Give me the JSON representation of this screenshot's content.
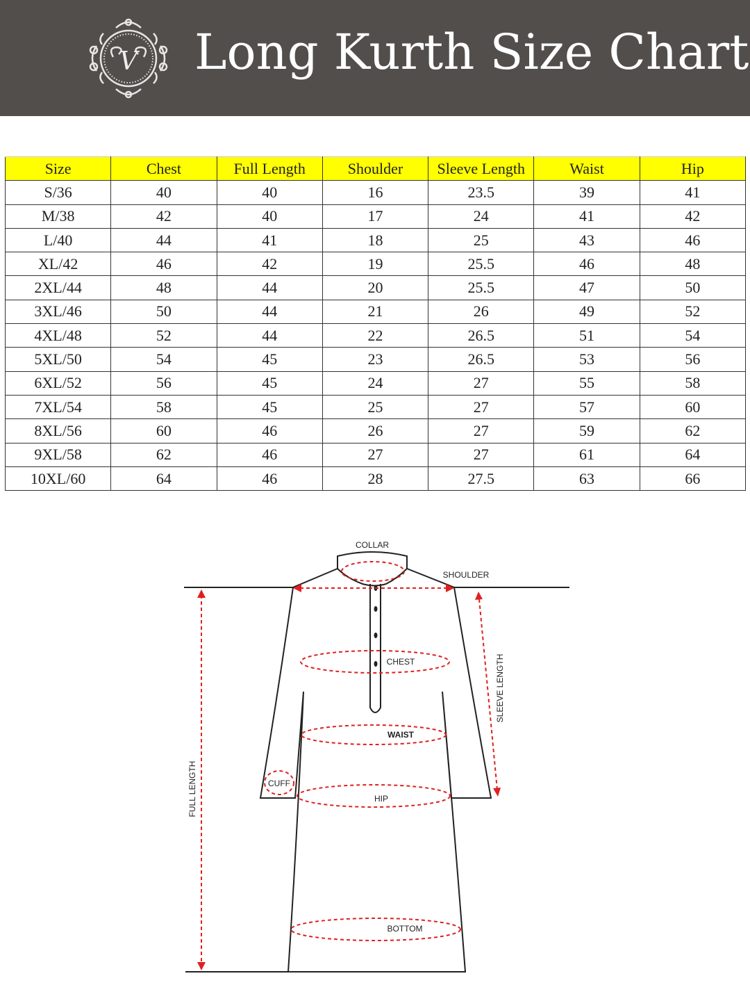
{
  "header": {
    "title": "Long Kurth Size Chart",
    "logo_letter": "V",
    "background_color": "#524e4b"
  },
  "table": {
    "header_color": "#ffff00",
    "columns": [
      "Size",
      "Chest",
      "Full  Length",
      "Shoulder",
      "Sleeve  Length",
      "Waist",
      "Hip"
    ],
    "rows": [
      [
        "S/36",
        "40",
        "40",
        "16",
        "23.5",
        "39",
        "41"
      ],
      [
        "M/38",
        "42",
        "40",
        "17",
        "24",
        "41",
        "42"
      ],
      [
        "L/40",
        "44",
        "41",
        "18",
        "25",
        "43",
        "46"
      ],
      [
        "XL/42",
        "46",
        "42",
        "19",
        "25.5",
        "46",
        "48"
      ],
      [
        "2XL/44",
        "48",
        "44",
        "20",
        "25.5",
        "47",
        "50"
      ],
      [
        "3XL/46",
        "50",
        "44",
        "21",
        "26",
        "49",
        "52"
      ],
      [
        "4XL/48",
        "52",
        "44",
        "22",
        "26.5",
        "51",
        "54"
      ],
      [
        "5XL/50",
        "54",
        "45",
        "23",
        "26.5",
        "53",
        "56"
      ],
      [
        "6XL/52",
        "56",
        "45",
        "24",
        "27",
        "55",
        "58"
      ],
      [
        "7XL/54",
        "58",
        "45",
        "25",
        "27",
        "57",
        "60"
      ],
      [
        "8XL/56",
        "60",
        "46",
        "26",
        "27",
        "59",
        "62"
      ],
      [
        "9XL/58",
        "62",
        "46",
        "27",
        "27",
        "61",
        "64"
      ],
      [
        "10XL/60",
        "64",
        "46",
        "28",
        "27.5",
        "63",
        "66"
      ]
    ]
  },
  "diagram": {
    "measure_color": "#e02020",
    "labels": {
      "collar": "COLLAR",
      "shoulder": "SHOULDER",
      "chest": "CHEST",
      "waist": "WAIST",
      "hip": "HIP",
      "cuff": "CUFF",
      "bottom": "BOTTOM",
      "full_length": "FULL LENGTH",
      "sleeve_length": "SLEEVE LENGTH"
    }
  }
}
